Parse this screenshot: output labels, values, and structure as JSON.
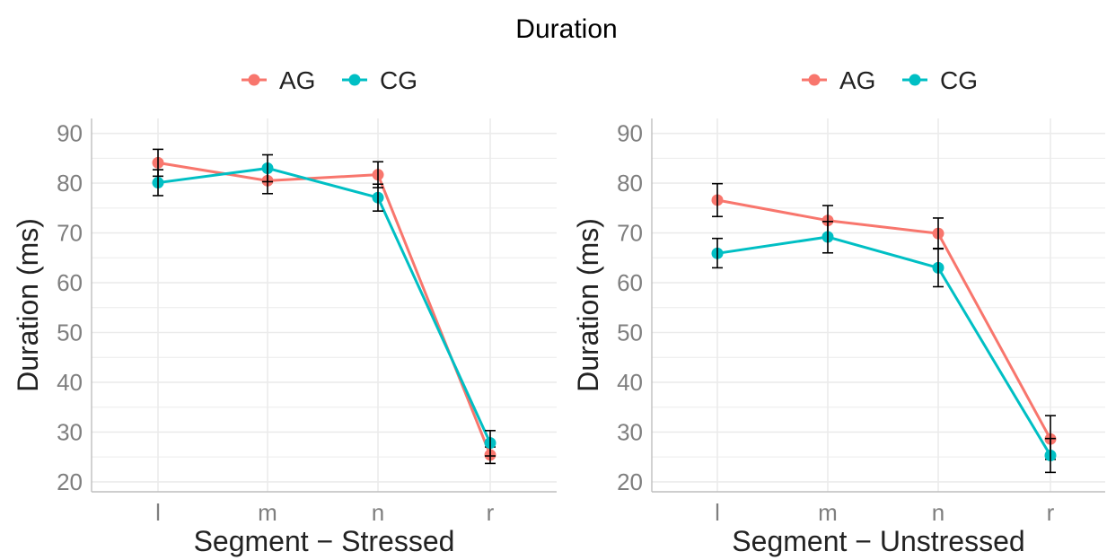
{
  "title": "Duration",
  "colors": {
    "AG": "#F8766D",
    "CG": "#00BFC4",
    "grid": "#EBEBEB",
    "axis_text": "#7F7F7F",
    "error_bar": "#000000"
  },
  "chart_data": [
    {
      "type": "line",
      "title": "",
      "xlabel": "Segment − Stressed",
      "ylabel": "Duration (ms)",
      "categories": [
        "l",
        "m",
        "n",
        "r"
      ],
      "ylim": [
        18,
        93
      ],
      "yticks": [
        "20",
        "30",
        "40",
        "50",
        "60",
        "70",
        "80",
        "90"
      ],
      "grid": true,
      "legend_position": "top",
      "legend": [
        "AG",
        "CG"
      ],
      "series": [
        {
          "name": "AG",
          "values": [
            84.1,
            80.5,
            81.7,
            25.4
          ],
          "error_low": [
            81.4,
            77.9,
            79.1,
            23.7
          ],
          "error_high": [
            86.8,
            83.1,
            84.3,
            27.0
          ]
        },
        {
          "name": "CG",
          "values": [
            80.1,
            83.0,
            77.1,
            27.8
          ],
          "error_low": [
            77.5,
            80.3,
            74.4,
            25.2
          ],
          "error_high": [
            82.7,
            85.7,
            79.8,
            30.3
          ]
        }
      ]
    },
    {
      "type": "line",
      "title": "",
      "xlabel": "Segment − Unstressed",
      "ylabel": "Duration (ms)",
      "categories": [
        "l",
        "m",
        "n",
        "r"
      ],
      "ylim": [
        18,
        93
      ],
      "yticks": [
        "20",
        "30",
        "40",
        "50",
        "60",
        "70",
        "80",
        "90"
      ],
      "grid": true,
      "legend_position": "top",
      "legend": [
        "AG",
        "CG"
      ],
      "series": [
        {
          "name": "AG",
          "values": [
            76.6,
            72.5,
            69.9,
            28.6
          ],
          "error_low": [
            73.3,
            69.5,
            66.9,
            24.5
          ],
          "error_high": [
            79.9,
            75.5,
            73.0,
            33.3
          ]
        },
        {
          "name": "CG",
          "values": [
            65.9,
            69.2,
            63.0,
            25.3
          ],
          "error_low": [
            63.0,
            66.0,
            59.2,
            21.9
          ],
          "error_high": [
            68.9,
            72.3,
            66.8,
            28.7
          ]
        }
      ]
    }
  ]
}
